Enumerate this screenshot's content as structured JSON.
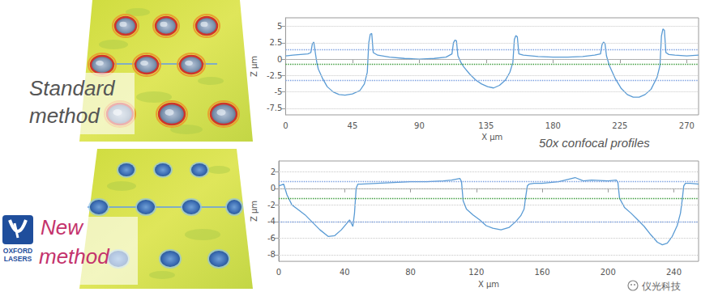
{
  "chart_data": [
    {
      "type": "line",
      "x_label": "X µm",
      "y_label": "Z µm",
      "color": "#5a9bd4",
      "line_style": "solid",
      "grid": true,
      "xlim": [
        0,
        278
      ],
      "xticks": [
        0,
        45,
        90,
        135,
        180,
        225,
        270
      ],
      "ylim": [
        -8.5,
        6.3
      ],
      "yticks": [
        5,
        2.5,
        0,
        -2.5,
        -5,
        -7.5
      ],
      "reference_lines": [
        {
          "value": 1.5,
          "color": "#7b9fe0"
        },
        {
          "value": -0.7,
          "color": "#3a9a3a"
        },
        {
          "value": -3.2,
          "color": "#7b9fe0"
        }
      ],
      "x": [
        0,
        5,
        10,
        15,
        17,
        18,
        19,
        20,
        21,
        22,
        25,
        28,
        32,
        36,
        40,
        45,
        50,
        53,
        55,
        56,
        57,
        58,
        59,
        62,
        70,
        80,
        90,
        100,
        108,
        112,
        113,
        114,
        115,
        116,
        118,
        120,
        124,
        128,
        132,
        136,
        140,
        144,
        148,
        151,
        153,
        154,
        155,
        156,
        157,
        160,
        170,
        180,
        190,
        200,
        208,
        212,
        213,
        214,
        215,
        216,
        218,
        222,
        226,
        230,
        234,
        238,
        242,
        246,
        250,
        252,
        253,
        254,
        255,
        256,
        258,
        262,
        270,
        278
      ],
      "values": [
        0.5,
        0.6,
        0.7,
        0.8,
        1.0,
        2.3,
        2.6,
        1.0,
        -0.5,
        -1.5,
        -3.0,
        -4.2,
        -5.0,
        -5.4,
        -5.5,
        -5.3,
        -4.8,
        -3.8,
        -2.0,
        2.5,
        3.8,
        3.9,
        1.0,
        0.6,
        0.3,
        0.1,
        0,
        0.1,
        0.3,
        0.8,
        2.5,
        2.9,
        2.8,
        0.5,
        -0.5,
        -1.2,
        -2.3,
        -3.2,
        -3.8,
        -4.2,
        -4.4,
        -4.0,
        -3.2,
        -2.0,
        -0.5,
        3.0,
        3.6,
        3.4,
        0.8,
        0.6,
        0.4,
        0.3,
        0.3,
        0.4,
        0.6,
        0.8,
        2.2,
        2.6,
        2.4,
        0.5,
        -1.0,
        -3.0,
        -4.5,
        -5.4,
        -5.8,
        -5.8,
        -5.4,
        -4.6,
        -2.8,
        -1.0,
        3.5,
        4.6,
        4.4,
        1.0,
        0.7,
        0.6,
        0.5,
        0.6
      ]
    },
    {
      "type": "line",
      "x_label": "X µm",
      "y_label": "Z µm",
      "color": "#5a9bd4",
      "line_style": "solid",
      "grid": true,
      "xlim": [
        0,
        255
      ],
      "xticks": [
        0,
        40,
        80,
        120,
        160,
        200,
        240
      ],
      "ylim": [
        -8.8,
        3.3
      ],
      "yticks": [
        2,
        0,
        -2,
        -4,
        -6,
        -8
      ],
      "reference_lines": [
        {
          "value": 0.8,
          "color": "#7b9fe0"
        },
        {
          "value": -1.25,
          "color": "#3a9a3a"
        },
        {
          "value": -4.0,
          "color": "#7b9fe0"
        }
      ],
      "x": [
        0,
        3,
        5,
        8,
        12,
        16,
        20,
        25,
        30,
        34,
        38,
        41,
        43,
        45,
        46,
        47,
        48,
        50,
        60,
        70,
        80,
        90,
        100,
        105,
        110,
        111,
        112,
        114,
        118,
        122,
        126,
        130,
        135,
        140,
        144,
        147,
        149,
        150,
        151,
        152,
        155,
        160,
        170,
        180,
        185,
        190,
        200,
        205,
        206,
        207,
        210,
        214,
        218,
        222,
        226,
        230,
        233,
        236,
        239,
        242,
        244,
        245,
        246,
        247,
        250,
        255
      ],
      "values": [
        0.3,
        0.5,
        -0.8,
        -2.0,
        -2.6,
        -3.2,
        -4.0,
        -5.0,
        -5.8,
        -5.7,
        -5.0,
        -4.3,
        -3.8,
        -4.6,
        -3.0,
        0.0,
        0.5,
        0.5,
        0.6,
        0.7,
        0.8,
        0.8,
        0.9,
        1.0,
        1.2,
        0.8,
        -1.5,
        -2.5,
        -3.2,
        -3.8,
        -4.5,
        -4.8,
        -5.0,
        -4.7,
        -4.0,
        -3.3,
        -2.5,
        -1.0,
        0.3,
        0.5,
        0.6,
        0.6,
        0.8,
        1.3,
        0.9,
        1.0,
        0.9,
        1.0,
        0.7,
        -1.2,
        -2.3,
        -3.0,
        -3.8,
        -4.6,
        -5.6,
        -6.5,
        -6.8,
        -6.6,
        -5.8,
        -4.5,
        -3.0,
        -1.5,
        0.3,
        0.6,
        0.6,
        0.5
      ]
    }
  ],
  "panels": [
    {
      "label": "Standard method"
    },
    {
      "label": "New method"
    }
  ],
  "caption": "50x confocal profiles",
  "logo": [
    "OXFORD",
    "LASERS"
  ],
  "watermark": "仪光科技"
}
